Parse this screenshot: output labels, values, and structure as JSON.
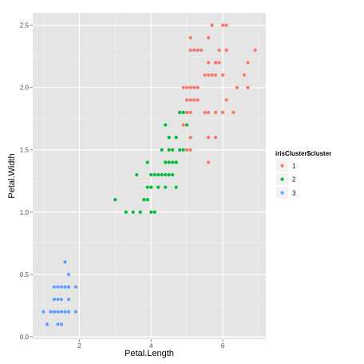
{
  "chart_data": {
    "type": "scatter",
    "title": "",
    "xlabel": "Petal.Length",
    "ylabel": "Petal.Width",
    "xlim": [
      0.7,
      7.2
    ],
    "ylim": [
      -0.02,
      2.6
    ],
    "x_ticks": [
      2,
      4,
      6
    ],
    "y_ticks": [
      0.0,
      0.5,
      1.0,
      1.5,
      2.0,
      2.5
    ],
    "y_tick_labels": [
      "0.0",
      "0.5",
      "1.0",
      "1.5",
      "2.0",
      "2.5"
    ],
    "grid": true,
    "legend": {
      "title": "irisCluster$cluster",
      "placement": "right",
      "entries": [
        {
          "label": "1",
          "color": "#F8766D"
        },
        {
          "label": "2",
          "color": "#00BA38"
        },
        {
          "label": "3",
          "color": "#619CFF"
        }
      ]
    },
    "series": [
      {
        "name": "1",
        "color": "#F8766D",
        "points": [
          [
            5.1,
            2.4
          ],
          [
            5.4,
            2.3
          ],
          [
            5.6,
            2.4
          ],
          [
            6.1,
            2.5
          ],
          [
            6.0,
            2.5
          ],
          [
            6.1,
            2.3
          ],
          [
            5.7,
            2.5
          ],
          [
            5.9,
            2.3
          ],
          [
            5.1,
            2.3
          ],
          [
            5.2,
            2.3
          ],
          [
            5.3,
            2.3
          ],
          [
            5.8,
            2.2
          ],
          [
            5.8,
            2.1
          ],
          [
            5.6,
            2.2
          ],
          [
            5.5,
            2.1
          ],
          [
            5.7,
            2.1
          ],
          [
            5.6,
            2.1
          ],
          [
            6.0,
            2.1
          ],
          [
            5.9,
            2.2
          ],
          [
            6.1,
            2.3
          ],
          [
            6.4,
            2.0
          ],
          [
            6.6,
            2.1
          ],
          [
            6.7,
            2.2
          ],
          [
            6.9,
            2.3
          ],
          [
            6.7,
            2.0
          ],
          [
            4.9,
            2.0
          ],
          [
            5.0,
            2.0
          ],
          [
            5.1,
            2.0
          ],
          [
            5.2,
            2.0
          ],
          [
            5.3,
            2.0
          ],
          [
            5.0,
            1.9
          ],
          [
            5.1,
            1.9
          ],
          [
            5.2,
            1.9
          ],
          [
            5.3,
            1.9
          ],
          [
            6.1,
            1.9
          ],
          [
            5.0,
            1.8
          ],
          [
            5.1,
            1.8
          ],
          [
            5.5,
            1.8
          ],
          [
            5.6,
            1.8
          ],
          [
            5.8,
            1.8
          ],
          [
            6.0,
            1.8
          ],
          [
            6.3,
            1.8
          ],
          [
            4.9,
            1.7
          ],
          [
            5.6,
            1.6
          ],
          [
            5.1,
            1.5
          ],
          [
            5.0,
            1.5
          ],
          [
            5.6,
            1.4
          ],
          [
            5.8,
            1.6
          ],
          [
            5.5,
            1.8
          ],
          [
            5.1,
            1.6
          ]
        ]
      },
      {
        "name": "2",
        "color": "#00BA38",
        "points": [
          [
            4.8,
            1.8
          ],
          [
            4.9,
            1.8
          ],
          [
            4.9,
            1.5
          ],
          [
            4.8,
            1.5
          ],
          [
            5.0,
            1.7
          ],
          [
            4.7,
            1.4
          ],
          [
            4.5,
            1.5
          ],
          [
            4.6,
            1.5
          ],
          [
            4.5,
            1.6
          ],
          [
            4.7,
            1.6
          ],
          [
            4.4,
            1.7
          ],
          [
            4.6,
            1.4
          ],
          [
            4.7,
            1.4
          ],
          [
            4.6,
            1.3
          ],
          [
            4.4,
            1.4
          ],
          [
            4.5,
            1.4
          ],
          [
            4.3,
            1.5
          ],
          [
            4.5,
            1.3
          ],
          [
            4.4,
            1.3
          ],
          [
            4.3,
            1.3
          ],
          [
            4.2,
            1.3
          ],
          [
            4.1,
            1.3
          ],
          [
            4.0,
            1.3
          ],
          [
            3.9,
            1.4
          ],
          [
            3.9,
            1.2
          ],
          [
            4.0,
            1.2
          ],
          [
            4.2,
            1.2
          ],
          [
            4.4,
            1.2
          ],
          [
            4.7,
            1.2
          ],
          [
            3.6,
            1.3
          ],
          [
            3.8,
            1.1
          ],
          [
            3.9,
            1.1
          ],
          [
            4.0,
            1.0
          ],
          [
            4.1,
            1.0
          ],
          [
            3.0,
            1.1
          ],
          [
            3.3,
            1.0
          ],
          [
            3.5,
            1.0
          ],
          [
            3.7,
            1.0
          ],
          [
            4.4,
            1.4
          ]
        ]
      },
      {
        "name": "3",
        "color": "#619CFF",
        "points": [
          [
            1.6,
            0.6
          ],
          [
            1.7,
            0.5
          ],
          [
            1.5,
            0.4
          ],
          [
            1.6,
            0.4
          ],
          [
            1.3,
            0.4
          ],
          [
            1.7,
            0.4
          ],
          [
            1.9,
            0.4
          ],
          [
            1.4,
            0.3
          ],
          [
            1.5,
            0.3
          ],
          [
            1.3,
            0.3
          ],
          [
            1.7,
            0.3
          ],
          [
            1.4,
            0.2
          ],
          [
            1.5,
            0.2
          ],
          [
            1.6,
            0.2
          ],
          [
            1.3,
            0.2
          ],
          [
            1.2,
            0.2
          ],
          [
            1.0,
            0.2
          ],
          [
            1.7,
            0.2
          ],
          [
            1.9,
            0.2
          ],
          [
            1.4,
            0.1
          ],
          [
            1.5,
            0.1
          ],
          [
            1.1,
            0.1
          ],
          [
            1.7,
            0.4
          ],
          [
            1.4,
            0.4
          ]
        ]
      }
    ]
  }
}
